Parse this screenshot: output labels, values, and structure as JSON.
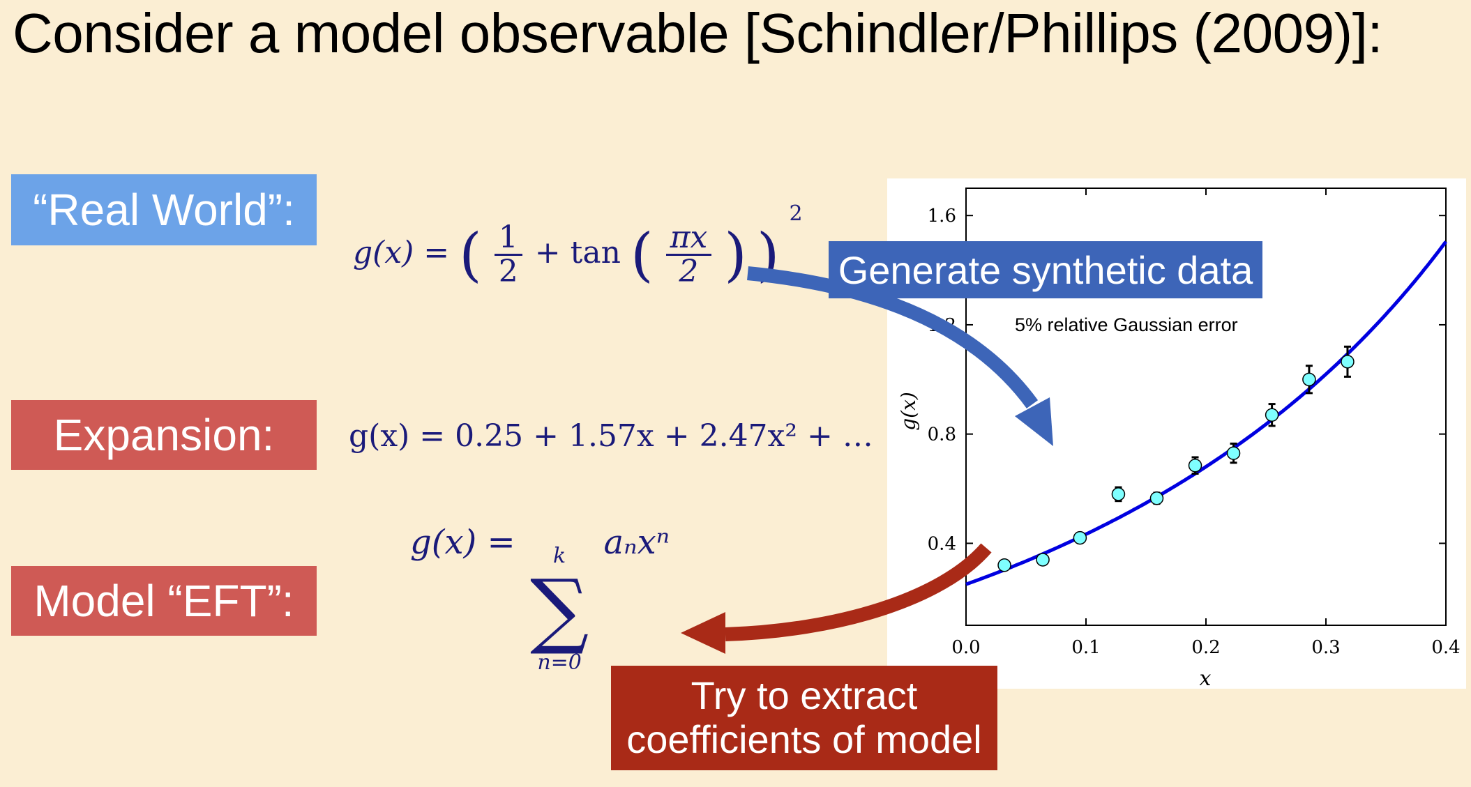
{
  "slide": {
    "title": "Consider a model observable [Schindler/Phillips (2009)]:"
  },
  "labels": {
    "real_world": "“Real World”:",
    "expansion": "Expansion:",
    "model_eft": "Model “EFT”:"
  },
  "equations": {
    "real_world": {
      "lhs": "g(x) =",
      "half_num": "1",
      "half_den": "2",
      "plus": "+",
      "tan": "tan",
      "arg_num": "πx",
      "arg_den": "2",
      "exp": "2"
    },
    "expansion": "g(x) = 0.25 + 1.57x + 2.47x² + …",
    "model": {
      "lhs": "g(x) =",
      "sum_upper": "k",
      "sum_lower": "n=0",
      "term": "aₙxⁿ"
    }
  },
  "callouts": {
    "generate": "Generate synthetic data",
    "extract_line1": "Try to extract",
    "extract_line2": "coefficients of model"
  },
  "colors": {
    "background": "#FBEED3",
    "blue_label": "#6CA3E8",
    "red_label": "#CF5A55",
    "blue_arrow": "#3D65B8",
    "red_arrow": "#A92A17",
    "curve": "#0000E0",
    "points": "#7FFFFF",
    "math_text": "#1A1A7A"
  },
  "chart_data": {
    "type": "scatter",
    "annotation": "5% relative Gaussian error",
    "xlabel": "x",
    "ylabel": "g(x)",
    "xlim": [
      0.0,
      0.4
    ],
    "ylim": [
      0.1,
      1.7
    ],
    "x_ticks": [
      "0.0",
      "0.1",
      "0.2",
      "0.3",
      "0.4"
    ],
    "y_ticks": [
      "0.4",
      "0.8",
      "1.2",
      "1.6"
    ],
    "curve_function": "(1/2 + tan(pi*x/2))^2",
    "series": [
      {
        "x": [
          0.032,
          0.064,
          0.095,
          0.127,
          0.159,
          0.191,
          0.223,
          0.255,
          0.286,
          0.318
        ],
        "y": [
          0.32,
          0.34,
          0.42,
          0.58,
          0.565,
          0.685,
          0.73,
          0.87,
          1.0,
          1.065
        ],
        "err": [
          0.012,
          0.013,
          0.015,
          0.025,
          0.02,
          0.03,
          0.035,
          0.04,
          0.05,
          0.055
        ]
      }
    ]
  }
}
